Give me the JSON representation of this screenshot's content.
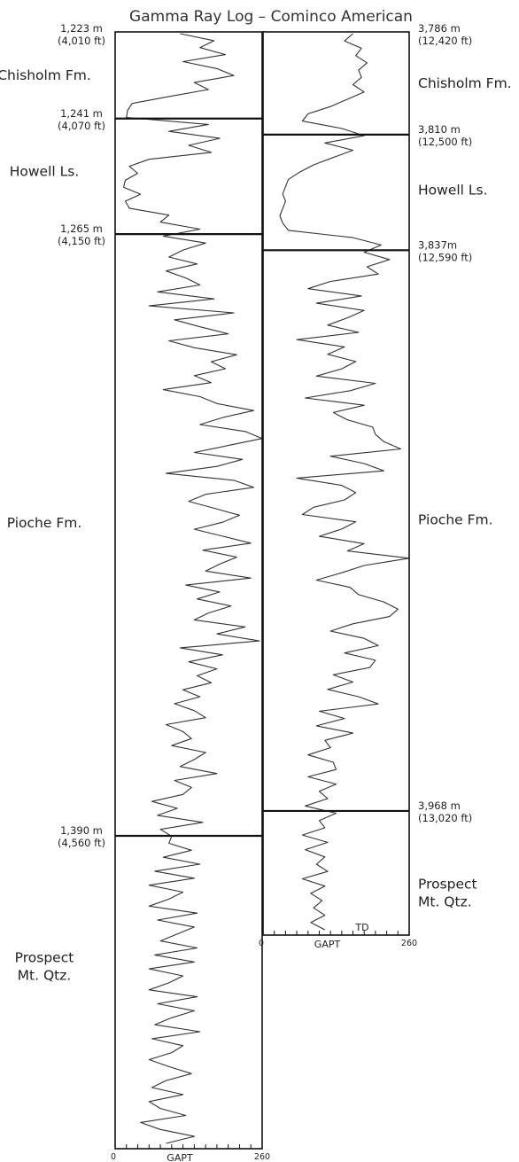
{
  "title": "Gamma Ray Log – Cominco American",
  "curve_color": "#333333",
  "chart_data": {
    "type": "line",
    "title": "Gamma Ray Log – Cominco American",
    "xlabel": "GAPT",
    "ylabel": "",
    "xlim": [
      0,
      260
    ],
    "x_ticks": [
      "0",
      "260"
    ],
    "wells": [
      {
        "ylim_m": [
          1223,
          1455
        ],
        "depth_labels": [
          {
            "m": 1223,
            "text": "1,223 m",
            "sub": "(4,010 ft)"
          },
          {
            "m": 1241,
            "text": "1,241 m",
            "sub": "(4,070 ft)"
          },
          {
            "m": 1265,
            "text": "1,265 m",
            "sub": "(4,150 ft)"
          },
          {
            "m": 1390,
            "text": "1,390 m",
            "sub": "(4,560 ft)"
          }
        ],
        "boundaries_m": [
          1241,
          1265,
          1390
        ],
        "formations": [
          {
            "name": "Chisholm Fm.",
            "m": 1232
          },
          {
            "name": "Howell Ls.",
            "m": 1252
          },
          {
            "name": "Pioche Fm.",
            "m": 1325
          },
          {
            "name": "Prospect",
            "name2": "Mt. Qtz.",
            "m": 1417
          }
        ],
        "end_label": "",
        "gamma_gapt": [
          115,
          175,
          150,
          195,
          120,
          180,
          210,
          140,
          165,
          95,
          30,
          22,
          20,
          165,
          95,
          185,
          130,
          170,
          60,
          25,
          40,
          18,
          15,
          45,
          18,
          25,
          95,
          80,
          150,
          85,
          160,
          120,
          95,
          145,
          90,
          125,
          150,
          75,
          175,
          60,
          210,
          105,
          150,
          200,
          95,
          140,
          215,
          170,
          195,
          140,
          170,
          85,
          150,
          180,
          245,
          190,
          150,
          230,
          260,
          200,
          140,
          225,
          180,
          90,
          210,
          245,
          160,
          130,
          175,
          220,
          190,
          140,
          190,
          240,
          155,
          215,
          185,
          160,
          240,
          125,
          185,
          145,
          205,
          165,
          140,
          230,
          180,
          255,
          115,
          190,
          130,
          180,
          145,
          170,
          120,
          150,
          105,
          140,
          160,
          90,
          120,
          135,
          100,
          160,
          140,
          115,
          180,
          105,
          135,
          120,
          65,
          110,
          75,
          155,
          80,
          100,
          95,
          135,
          85,
          150,
          70,
          140,
          60,
          120,
          95,
          60,
          145,
          75,
          140,
          110,
          80,
          145,
          70,
          140,
          60,
          120,
          95,
          60,
          145,
          75,
          140,
          100,
          70,
          150,
          65,
          120,
          100,
          60,
          95,
          135,
          90,
          65,
          120,
          60,
          80,
          125,
          45,
          80,
          140,
          90
        ]
      },
      {
        "ylim_m": [
          3786,
          3997
        ],
        "depth_labels": [
          {
            "m": 3786,
            "text": "3,786 m",
            "sub": "(12,420 ft)"
          },
          {
            "m": 3810,
            "text": "3,810 m",
            "sub": "(12,500 ft)"
          },
          {
            "m": 3837,
            "text": "3,837m",
            "sub": "(12,590 ft)"
          },
          {
            "m": 3968,
            "text": "3,968 m",
            "sub": "(13,020 ft)"
          }
        ],
        "boundaries_m": [
          3810,
          3837,
          3968
        ],
        "formations": [
          {
            "name": "Chisholm Fm.",
            "m": 3798
          },
          {
            "name": "Howell Ls.",
            "m": 3823
          },
          {
            "name": "Pioche Fm.",
            "m": 3900
          },
          {
            "name": "Prospect",
            "name2": "Mt. Qtz.",
            "m": 3987
          }
        ],
        "end_label": "TD",
        "gamma_gapt": [
          160,
          145,
          175,
          165,
          185,
          170,
          175,
          160,
          180,
          150,
          120,
          80,
          70,
          140,
          180,
          110,
          160,
          125,
          90,
          65,
          45,
          40,
          35,
          40,
          35,
          30,
          35,
          45,
          160,
          210,
          180,
          225,
          185,
          205,
          120,
          80,
          175,
          95,
          180,
          150,
          115,
          170,
          60,
          145,
          115,
          165,
          140,
          95,
          200,
          155,
          75,
          180,
          125,
          150,
          195,
          200,
          215,
          245,
          120,
          180,
          215,
          60,
          140,
          165,
          145,
          90,
          70,
          165,
          140,
          100,
          180,
          150,
          260,
          180,
          140,
          95,
          155,
          170,
          215,
          240,
          225,
          160,
          120,
          180,
          205,
          145,
          200,
          190,
          125,
          160,
          115,
          170,
          205,
          100,
          145,
          95,
          160,
          110,
          120,
          80,
          125,
          130,
          80,
          130,
          100,
          115,
          75,
          130,
          100,
          110,
          70,
          115,
          75,
          110,
          95,
          115,
          70,
          110,
          85,
          105,
          90,
          110,
          85,
          110
        ]
      }
    ]
  }
}
